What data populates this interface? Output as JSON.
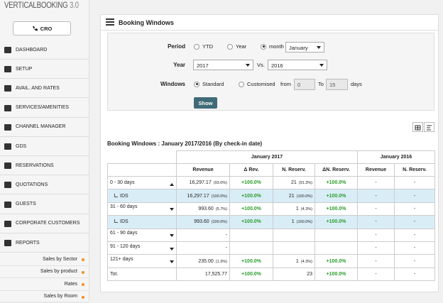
{
  "logo": {
    "name": "VERTICALBOOKING",
    "version": "3.0"
  },
  "cro_button": "CRO",
  "menu": [
    "DASHBOARD",
    "SETUP",
    "AVAIL. AND RATES",
    "SERVICES/AMENITIES",
    "CHANNEL MANAGER",
    "GDS",
    "RESERVATIONS",
    "QUOTATIONS",
    "GUESTS",
    "CORPORATE CUSTOMERS",
    "REPORTS"
  ],
  "submenu": [
    "Sales by Sector",
    "Sales by product",
    "Rates",
    "Sales by Room"
  ],
  "panel_title": "Booking Windows",
  "filters": {
    "period": {
      "label": "Period",
      "options": [
        {
          "label": "YTD"
        },
        {
          "label": "Year"
        },
        {
          "label": "month",
          "checked": true
        }
      ],
      "select": "January"
    },
    "year": {
      "label": "Year",
      "select": "2017",
      "vs": "Vs.",
      "compare": "2016"
    },
    "windows": {
      "label": "Windows",
      "options": [
        {
          "label": "Standard",
          "checked": true
        },
        {
          "label": "Customised"
        }
      ],
      "from": "from",
      "from_value": "0",
      "to": "To",
      "to_value": "15",
      "unit": "days"
    },
    "button": "Show"
  },
  "table": {
    "title": "Booking Windows : January 2017/2016 (By check-in date)",
    "groups": [
      "January 2017",
      "January 2016"
    ],
    "columns": [
      "Revenue",
      "Δ Rev.",
      "N. Reserv.",
      "ΔN. Reserv.",
      "Revenue",
      "N. Reserv."
    ],
    "rows": [
      {
        "label": "0 - 30 days",
        "expanded": true,
        "revenue": "16,297.17",
        "revenue_share": "(93.0%)",
        "delta_rev": "+100.0%",
        "reservations": "21",
        "reservations_share": "(91.3%)",
        "delta_res": "+100.0%",
        "revenue_2016": "-",
        "reservations_2016": "-"
      },
      {
        "label": "IDS",
        "child": true,
        "revenue": "16,297.17",
        "revenue_share": "(100.0%)",
        "delta_rev": "+100.0%",
        "reservations": "21",
        "reservations_share": "(100.0%)",
        "delta_res": "+100.0%",
        "revenue_2016": "-",
        "reservations_2016": "-"
      },
      {
        "label": "31 - 60 days",
        "revenue": "993.60",
        "revenue_share": "(5.7%)",
        "delta_rev": "+100.0%",
        "reservations": "1",
        "reservations_share": "(4.3%)",
        "delta_res": "+100.0%",
        "revenue_2016": "-",
        "reservations_2016": "-"
      },
      {
        "label": "IDS",
        "child": true,
        "revenue": "993.60",
        "revenue_share": "(100.0%)",
        "delta_rev": "+100.0%",
        "reservations": "1",
        "reservations_share": "(100.0%)",
        "delta_res": "+100.0%",
        "revenue_2016": "-",
        "reservations_2016": "-"
      },
      {
        "label": "61 - 90 days",
        "revenue": "-",
        "revenue_2016": "-",
        "reservations_2016": "-"
      },
      {
        "label": "91 - 120 days",
        "revenue": "-",
        "revenue_2016": "-",
        "reservations_2016": "-"
      },
      {
        "label": "121+ days",
        "revenue": "235.00",
        "revenue_share": "(1.3%)",
        "delta_rev": "+100.0%",
        "reservations": "1",
        "reservations_share": "(4.3%)",
        "delta_res": "+100.0%",
        "revenue_2016": "-",
        "reservations_2016": "-"
      },
      {
        "label": "Tot.",
        "total": true,
        "revenue": "17,525.77",
        "delta_rev": "+100.0%",
        "reservations": "23",
        "delta_res": "+100.0%",
        "revenue_2016": "-",
        "reservations_2016": "-"
      }
    ]
  }
}
